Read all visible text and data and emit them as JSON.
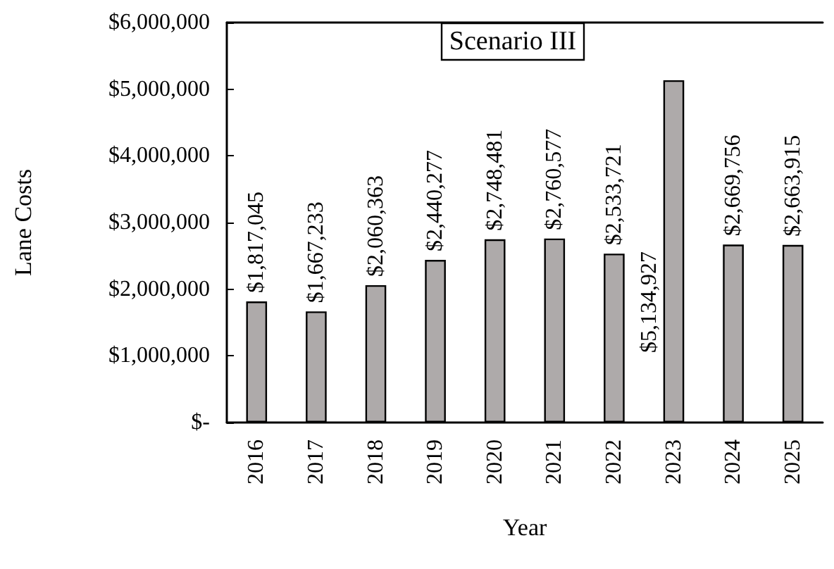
{
  "chart_data": {
    "type": "bar",
    "title": "Scenario III",
    "xlabel": "Year",
    "ylabel": "Lane Costs",
    "categories": [
      "2016",
      "2017",
      "2018",
      "2019",
      "2020",
      "2021",
      "2022",
      "2023",
      "2024",
      "2025"
    ],
    "values": [
      1817045,
      1667233,
      2060363,
      2440277,
      2748481,
      2760577,
      2533721,
      5134927,
      2669756,
      2663915
    ],
    "value_labels": [
      "$1,817,045",
      "$1,667,233",
      "$2,060,363",
      "$2,440,277",
      "$2,748,481",
      "$2,760,577",
      "$2,533,721",
      "$5,134,927",
      "$2,669,756",
      "$2,663,915"
    ],
    "color": "#aeaaaa",
    "ylim": [
      0,
      6000000
    ],
    "yticks": [
      {
        "value": 0,
        "label": "$-"
      },
      {
        "value": 1000000,
        "label": "$1,000,000"
      },
      {
        "value": 2000000,
        "label": "$2,000,000"
      },
      {
        "value": 3000000,
        "label": "$3,000,000"
      },
      {
        "value": 4000000,
        "label": "$4,000,000"
      },
      {
        "value": 5000000,
        "label": "$5,000,000"
      },
      {
        "value": 6000000,
        "label": "$6,000,000"
      }
    ],
    "grid": false
  }
}
